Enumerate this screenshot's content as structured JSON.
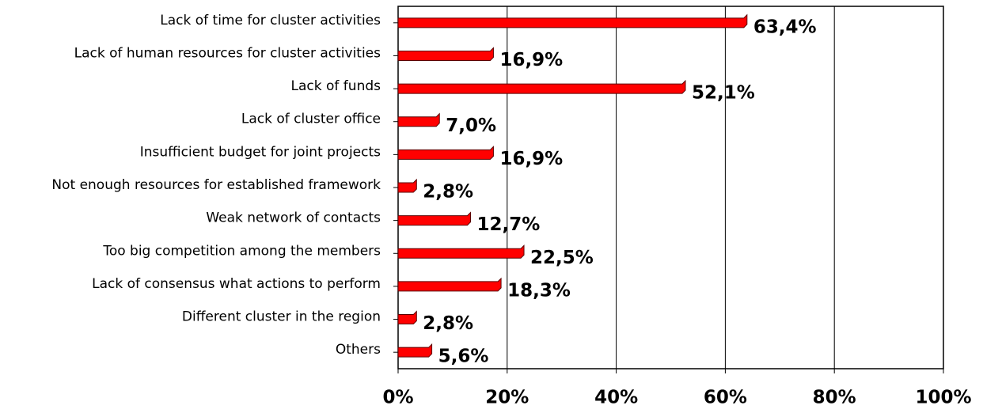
{
  "chart_data": {
    "type": "bar",
    "orientation": "horizontal",
    "categories": [
      "Lack of time for cluster activities",
      "Lack of human resources for cluster activities",
      "Lack of funds",
      "Lack of cluster office",
      "Insufficient budget for joint projects",
      "Not enough resources for established framework",
      "Weak network of contacts",
      "Too big competition among the members",
      "Lack of consensus what actions to perform",
      "Different cluster in the region",
      "Others"
    ],
    "values": [
      63.4,
      16.9,
      52.1,
      7.0,
      16.9,
      2.8,
      12.7,
      22.5,
      18.3,
      2.8,
      5.6
    ],
    "value_labels": [
      "63,4%",
      "16,9%",
      "52,1%",
      "7,0%",
      "16,9%",
      "2,8%",
      "12,7%",
      "22,5%",
      "18,3%",
      "2,8%",
      "5,6%"
    ],
    "color": "#ff0000",
    "xlim": [
      0,
      100
    ],
    "xticks": [
      {
        "value": 0,
        "label": "0%"
      },
      {
        "value": 20,
        "label": "20%"
      },
      {
        "value": 40,
        "label": "40%"
      },
      {
        "value": 60,
        "label": "60%"
      },
      {
        "value": 80,
        "label": "80%"
      },
      {
        "value": 100,
        "label": "100%"
      }
    ],
    "grid": true
  }
}
